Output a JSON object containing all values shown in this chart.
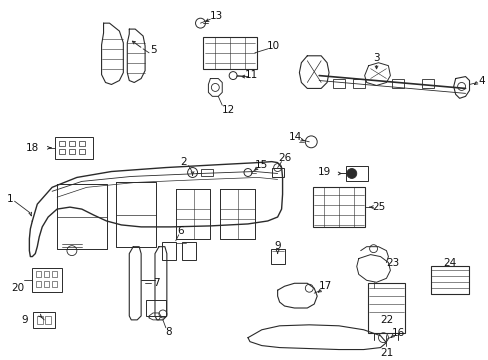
{
  "bg_color": "#ffffff",
  "fig_width": 4.89,
  "fig_height": 3.6,
  "dpi": 100,
  "line_color": "#2a2a2a",
  "text_color": "#111111",
  "font_size": 7.5
}
